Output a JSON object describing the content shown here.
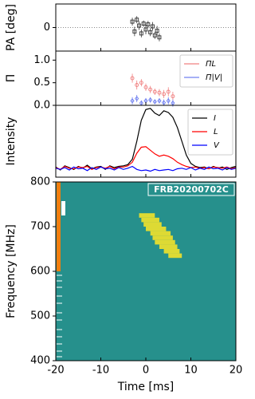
{
  "chart_data": [
    {
      "type": "scatter",
      "ylabel": "PA [deg]",
      "xlim": [
        -20,
        20
      ],
      "ylim": [
        -60,
        60
      ],
      "yticks": [
        0
      ],
      "grid": true,
      "series": [
        {
          "color": "#333333",
          "marker": "square",
          "x": [
            -3,
            -2.5,
            -2,
            -1.5,
            -1,
            -0.5,
            0,
            0.5,
            1,
            1.5,
            2,
            2.5,
            3
          ],
          "values": [
            15,
            -10,
            20,
            5,
            -15,
            10,
            -5,
            8,
            -12,
            3,
            -20,
            -8,
            -25
          ],
          "errors": [
            10,
            12,
            9,
            11,
            10,
            8,
            12,
            9,
            10,
            11,
            9,
            12,
            10
          ]
        }
      ]
    },
    {
      "type": "scatter",
      "ylabel": "Π",
      "xlim": [
        -20,
        20
      ],
      "ylim": [
        0,
        1.2
      ],
      "yticks": [
        {
          "value": 0,
          "label": "0.0"
        },
        0.5,
        {
          "value": 1,
          "label": "1.0"
        }
      ],
      "legend": "upper right",
      "series": [
        {
          "name": "ΠL",
          "color": "#f08080",
          "marker": "circle",
          "x": [
            -3,
            -2,
            -1,
            0,
            1,
            2,
            3,
            4,
            5,
            6
          ],
          "values": [
            0.6,
            0.45,
            0.5,
            0.4,
            0.35,
            0.3,
            0.28,
            0.25,
            0.3,
            0.2
          ],
          "errors": [
            0.1,
            0.1,
            0.08,
            0.08,
            0.08,
            0.07,
            0.08,
            0.09,
            0.1,
            0.1
          ]
        },
        {
          "name": "Π|V|",
          "color": "#7080f0",
          "marker": "diamond",
          "x": [
            -3,
            -2,
            -1,
            0,
            1,
            2,
            3,
            4,
            5,
            6
          ],
          "values": [
            0.1,
            0.15,
            0.05,
            0.1,
            0.12,
            0.08,
            0.1,
            0.06,
            0.1,
            0.05
          ],
          "errors": [
            0.08,
            0.08,
            0.06,
            0.06,
            0.06,
            0.05,
            0.06,
            0.07,
            0.08,
            0.08
          ]
        }
      ]
    },
    {
      "type": "line",
      "ylabel": "Intensity",
      "xlim": [
        -20,
        20
      ],
      "ylim": [
        -0.15,
        1.05
      ],
      "legend": "upper right",
      "x": [
        -20,
        -19,
        -18,
        -17,
        -16,
        -15,
        -14,
        -13,
        -12,
        -11,
        -10,
        -9,
        -8,
        -7,
        -6,
        -5,
        -4,
        -3,
        -2,
        -1,
        0,
        1,
        2,
        3,
        4,
        5,
        6,
        7,
        8,
        9,
        10,
        11,
        12,
        13,
        14,
        15,
        16,
        17,
        18,
        19,
        20
      ],
      "series": [
        {
          "name": "I",
          "color": "#000000",
          "values": [
            0.02,
            -0.03,
            0.04,
            0.01,
            -0.02,
            0.03,
            0.0,
            0.05,
            -0.01,
            0.02,
            0.03,
            -0.02,
            0.04,
            0.01,
            0.03,
            0.04,
            0.06,
            0.15,
            0.45,
            0.8,
            0.98,
            1.0,
            0.92,
            0.88,
            0.96,
            0.93,
            0.85,
            0.68,
            0.45,
            0.22,
            0.08,
            0.03,
            0.01,
            0.02,
            -0.01,
            0.03,
            0.0,
            0.02,
            -0.02,
            0.01,
            0.03
          ]
        },
        {
          "name": "L",
          "color": "#ff0000",
          "values": [
            0.01,
            -0.02,
            0.03,
            0.0,
            -0.01,
            0.02,
            0.01,
            0.03,
            -0.02,
            0.01,
            0.02,
            0.0,
            0.03,
            -0.01,
            0.02,
            0.02,
            0.04,
            0.1,
            0.25,
            0.35,
            0.36,
            0.3,
            0.24,
            0.2,
            0.22,
            0.2,
            0.16,
            0.1,
            0.06,
            0.03,
            0.01,
            0.02,
            0.0,
            0.01,
            -0.01,
            0.02,
            0.01,
            0.0,
            0.02,
            -0.01,
            0.01
          ]
        },
        {
          "name": "V",
          "color": "#0000ff",
          "values": [
            0.0,
            -0.02,
            0.01,
            -0.03,
            0.02,
            -0.01,
            0.0,
            -0.04,
            0.01,
            -0.02,
            0.02,
            -0.01,
            0.0,
            -0.03,
            0.01,
            -0.02,
            0.0,
            0.03,
            -0.02,
            -0.04,
            -0.03,
            -0.05,
            -0.02,
            -0.04,
            -0.03,
            -0.02,
            -0.04,
            -0.01,
            0.0,
            -0.02,
            0.01,
            -0.03,
            0.0,
            -0.02,
            0.02,
            -0.01,
            0.0,
            -0.03,
            0.01,
            -0.02,
            0.0
          ]
        }
      ]
    },
    {
      "type": "spectrogram",
      "ylabel": "Frequency [MHz]",
      "xlabel": "Time [ms]",
      "annotation": "FRB20200702C",
      "xlim": [
        -20,
        20
      ],
      "xticks": [
        -20,
        -10,
        0,
        10,
        20
      ],
      "ylim": [
        400,
        800
      ],
      "yticks": [
        400,
        500,
        600,
        700,
        800
      ],
      "background": "#26908c",
      "color": "#f2e22a",
      "channel_width": 10,
      "frequencies": [
        725,
        715,
        705,
        695,
        685,
        675,
        665,
        655,
        645,
        635
      ],
      "t_start": [
        -1.5,
        -1,
        -0.5,
        0,
        1,
        1.5,
        2,
        3,
        4,
        5
      ],
      "t_end": [
        2,
        3,
        3.5,
        4.5,
        5.5,
        6,
        6.5,
        7,
        7.5,
        8
      ]
    }
  ]
}
